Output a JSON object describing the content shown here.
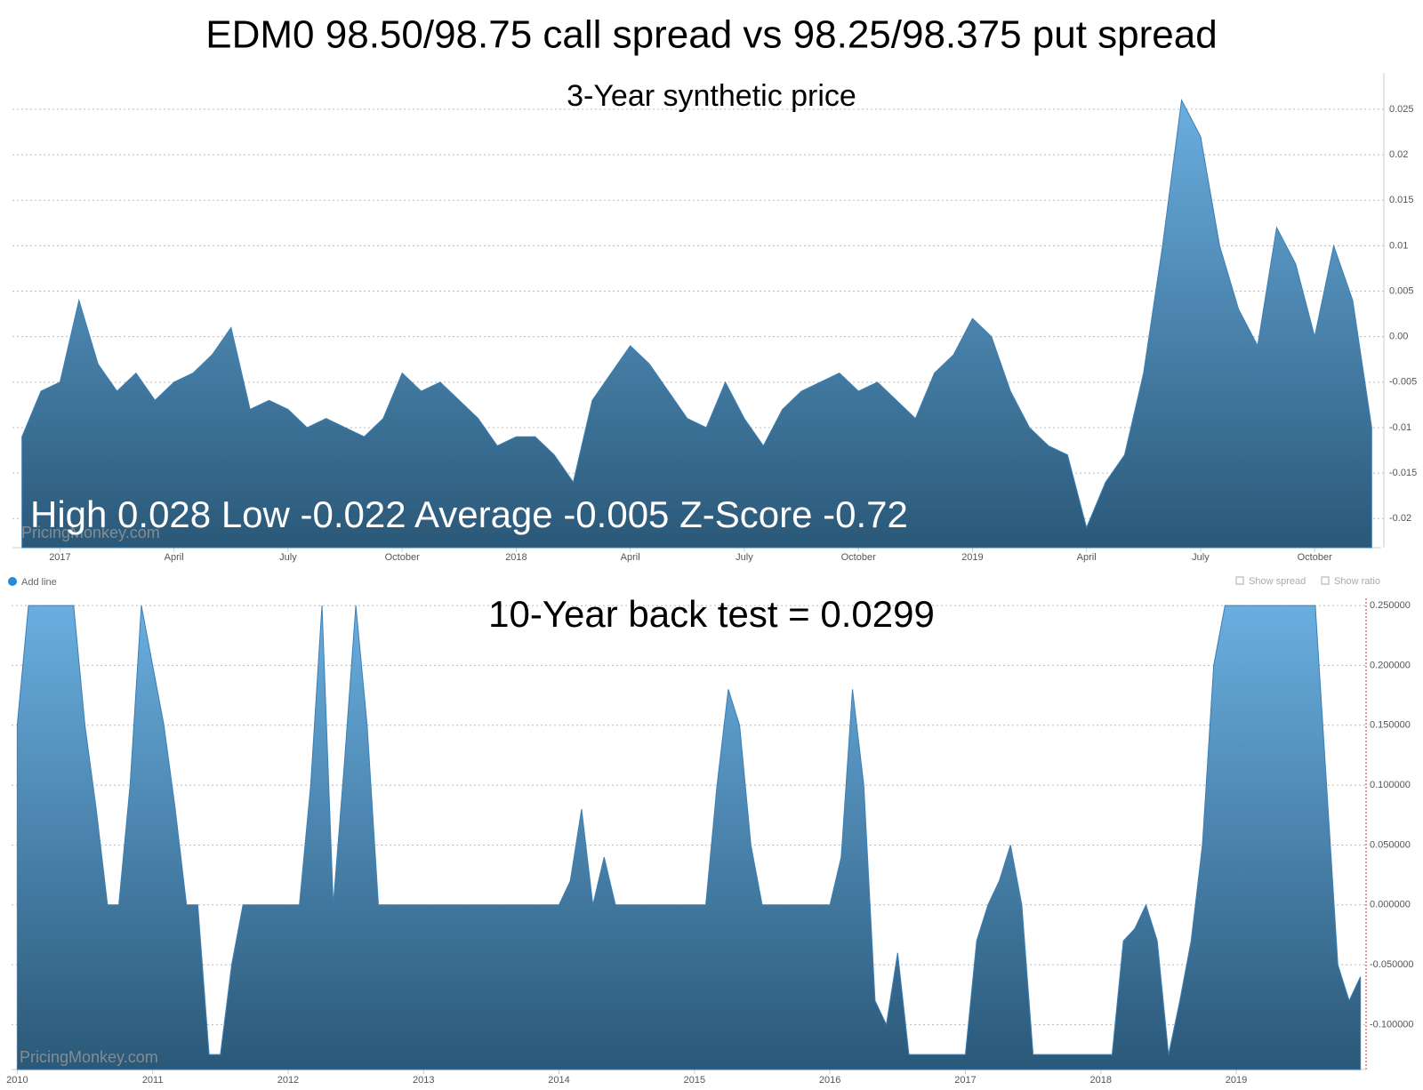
{
  "title": "EDM0 98.50/98.75 call spread vs 98.25/98.375 put spread",
  "controls": {
    "add_line": "Add line",
    "show_spread": "Show spread",
    "show_ratio": "Show ratio"
  },
  "chart_data": [
    {
      "type": "area",
      "subtitle": "3-Year synthetic price",
      "annotation": "High 0.028 Low -0.022 Average -0.005 Z-Score -0.72",
      "watermark": "PricingMonkey.com",
      "color": "#3a7fb5",
      "grid": true,
      "categories": [
        null,
        null,
        "2017",
        null,
        null,
        null,
        null,
        null,
        "April",
        null,
        null,
        null,
        null,
        null,
        "July",
        null,
        null,
        null,
        null,
        null,
        "October",
        null,
        null,
        null,
        null,
        null,
        "2018",
        null,
        null,
        null,
        null,
        null,
        "April",
        null,
        null,
        null,
        null,
        null,
        "July",
        null,
        null,
        null,
        null,
        null,
        "October",
        null,
        null,
        null,
        null,
        null,
        "2019",
        null,
        null,
        null,
        null,
        null,
        "April",
        null,
        null,
        null,
        null,
        null,
        "July",
        null,
        null,
        null,
        null,
        null,
        "October",
        null,
        null,
        null
      ],
      "values": [
        -0.011,
        -0.006,
        -0.005,
        0.004,
        -0.003,
        -0.006,
        -0.004,
        -0.007,
        -0.005,
        -0.004,
        -0.002,
        0.001,
        -0.008,
        -0.007,
        -0.008,
        -0.01,
        -0.009,
        -0.01,
        -0.011,
        -0.009,
        -0.004,
        -0.006,
        -0.005,
        -0.007,
        -0.009,
        -0.012,
        -0.011,
        -0.011,
        -0.013,
        -0.016,
        -0.007,
        -0.004,
        -0.001,
        -0.003,
        -0.006,
        -0.009,
        -0.01,
        -0.005,
        -0.009,
        -0.012,
        -0.008,
        -0.006,
        -0.005,
        -0.004,
        -0.006,
        -0.005,
        -0.007,
        -0.009,
        -0.004,
        -0.002,
        0.002,
        0.0,
        -0.006,
        -0.01,
        -0.012,
        -0.013,
        -0.021,
        -0.016,
        -0.013,
        -0.004,
        0.01,
        0.026,
        0.022,
        0.01,
        0.003,
        -0.001,
        0.012,
        0.008,
        0.0,
        0.01,
        0.004,
        -0.01
      ],
      "ylim": [
        -0.0232,
        0.029
      ],
      "yticks": [
        -0.02,
        -0.015,
        -0.01,
        -0.005,
        {
          "value": 0,
          "label": "0.00"
        },
        0.005,
        0.01,
        0.015,
        0.02,
        0.025
      ]
    },
    {
      "type": "area",
      "subtitle": "10-Year back test = 0.0299",
      "watermark": "PricingMonkey.com",
      "color": "#3a7fb5",
      "grid": true,
      "categories": [
        "2010",
        null,
        null,
        null,
        null,
        null,
        null,
        null,
        null,
        null,
        null,
        null,
        "2011",
        null,
        null,
        null,
        null,
        null,
        null,
        null,
        null,
        null,
        null,
        null,
        "2012",
        null,
        null,
        null,
        null,
        null,
        null,
        null,
        null,
        null,
        null,
        null,
        "2013",
        null,
        null,
        null,
        null,
        null,
        null,
        null,
        null,
        null,
        null,
        null,
        "2014",
        null,
        null,
        null,
        null,
        null,
        null,
        null,
        null,
        null,
        null,
        null,
        "2015",
        null,
        null,
        null,
        null,
        null,
        null,
        null,
        null,
        null,
        null,
        null,
        "2016",
        null,
        null,
        null,
        null,
        null,
        null,
        null,
        null,
        null,
        null,
        null,
        "2017",
        null,
        null,
        null,
        null,
        null,
        null,
        null,
        null,
        null,
        null,
        null,
        "2018",
        null,
        null,
        null,
        null,
        null,
        null,
        null,
        null,
        null,
        null,
        null,
        "2019",
        null,
        null,
        null,
        null,
        null,
        null,
        null,
        null,
        null,
        null,
        null
      ],
      "values": [
        0.15,
        0.25,
        0.25,
        0.25,
        0.25,
        0.25,
        0.15,
        0.08,
        0.0,
        0.0,
        0.1,
        0.25,
        0.2,
        0.15,
        0.08,
        0.0,
        0.0,
        -0.125,
        -0.125,
        -0.05,
        0,
        0,
        0,
        0,
        0,
        0,
        0.1,
        0.25,
        0.0,
        0.12,
        0.25,
        0.15,
        0.0,
        0,
        0,
        0,
        0,
        0,
        0,
        0,
        0,
        0,
        0,
        0,
        0,
        0,
        0,
        0,
        0,
        0.02,
        0.08,
        0.0,
        0.04,
        0.0,
        0,
        0,
        0,
        0,
        0,
        0,
        0,
        0,
        0.1,
        0.18,
        0.15,
        0.05,
        0,
        0,
        0,
        0,
        0,
        0,
        0,
        0.04,
        0.18,
        0.1,
        -0.08,
        -0.1,
        -0.04,
        -0.125,
        -0.125,
        -0.125,
        -0.125,
        -0.125,
        -0.125,
        -0.03,
        0,
        0.02,
        0.05,
        0.0,
        -0.125,
        -0.125,
        -0.125,
        -0.125,
        -0.125,
        -0.125,
        -0.125,
        -0.125,
        -0.03,
        -0.02,
        0,
        -0.03,
        -0.125,
        -0.08,
        -0.03,
        0.05,
        0.2,
        0.25,
        0.25,
        0.25,
        0.25,
        0.25,
        0.25,
        0.25,
        0.25,
        0.25,
        0.1,
        -0.05,
        -0.08,
        -0.06
      ],
      "ylim": [
        -0.1375,
        0.256
      ],
      "yticks": [
        {
          "value": -0.1,
          "label": "-0.100000"
        },
        {
          "value": -0.05,
          "label": "-0.050000"
        },
        {
          "value": 0,
          "label": "0.000000"
        },
        {
          "value": 0.05,
          "label": "0.050000"
        },
        {
          "value": 0.1,
          "label": "0.100000"
        },
        {
          "value": 0.15,
          "label": "0.150000"
        },
        {
          "value": 0.2,
          "label": "0.200000"
        },
        {
          "value": 0.25,
          "label": "0.250000"
        }
      ]
    }
  ]
}
